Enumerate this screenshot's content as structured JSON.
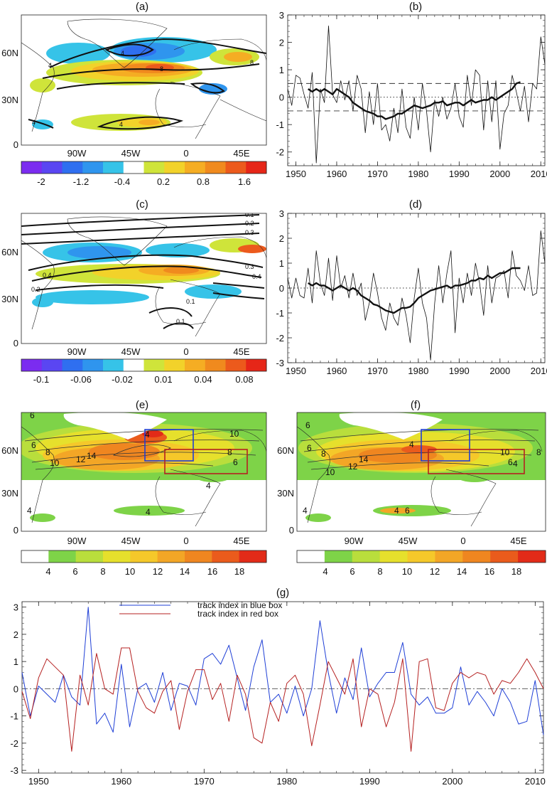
{
  "panels": {
    "a": "(a)",
    "b": "(b)",
    "c": "(c)",
    "d": "(d)",
    "e": "(e)",
    "f": "(f)",
    "g": "(g)"
  },
  "map": {
    "lat_ticks": [
      "0",
      "30N",
      "60N"
    ],
    "lon_ticks": [
      "90W",
      "45W",
      "0",
      "45E"
    ]
  },
  "colorbars": {
    "a": {
      "labels": [
        "-2",
        "-1.2",
        "-0.4",
        "0.2",
        "0.8",
        "1.6"
      ],
      "colors": [
        "#7b2cf0",
        "#5a46f2",
        "#2f6ff0",
        "#2f95ee",
        "#36c3e8",
        "#ffffff",
        "#cfe43a",
        "#f2d22a",
        "#f5ad23",
        "#f08a1e",
        "#ec5a1c",
        "#e62618"
      ]
    },
    "c": {
      "labels": [
        "-0.1",
        "-0.06",
        "-0.02",
        "0.01",
        "0.04",
        "0.08"
      ],
      "colors": [
        "#7b2cf0",
        "#5a46f2",
        "#2f6ff0",
        "#2f95ee",
        "#36c3e8",
        "#ffffff",
        "#cfe43a",
        "#f2d22a",
        "#f5ad23",
        "#f08a1e",
        "#ec5a1c",
        "#e62618"
      ]
    },
    "e": {
      "labels": [
        "4",
        "6",
        "8",
        "10",
        "12",
        "14",
        "16",
        "18"
      ],
      "colors": [
        "#ffffff",
        "#7ed348",
        "#b9de3c",
        "#e6e02c",
        "#f5c82a",
        "#f3a626",
        "#ef8620",
        "#ea5b1c",
        "#e22b18"
      ]
    }
  },
  "contour_labels": {
    "a": [
      "4",
      "8",
      "8",
      "4",
      "4",
      "4"
    ],
    "c": [
      "0.1",
      "0.2",
      "0.3",
      "0.4",
      "0.2",
      "0.3",
      "0.4",
      "0.1",
      "0.1"
    ],
    "e": [
      "6",
      "6",
      "8",
      "10",
      "12",
      "14",
      "4",
      "10",
      "8",
      "6",
      "4",
      "4",
      "4"
    ],
    "f": [
      "6",
      "6",
      "8",
      "10",
      "12",
      "14",
      "4",
      "10",
      "8",
      "6",
      "4",
      "4",
      "4",
      "6"
    ]
  },
  "chart_data": [
    {
      "id": "b",
      "type": "line",
      "x": [
        1948,
        1949,
        1950,
        1951,
        1952,
        1953,
        1954,
        1955,
        1956,
        1957,
        1958,
        1959,
        1960,
        1961,
        1962,
        1963,
        1964,
        1965,
        1966,
        1967,
        1968,
        1969,
        1970,
        1971,
        1972,
        1973,
        1974,
        1975,
        1976,
        1977,
        1978,
        1979,
        1980,
        1981,
        1982,
        1983,
        1984,
        1985,
        1986,
        1987,
        1988,
        1989,
        1990,
        1991,
        1992,
        1993,
        1994,
        1995,
        1996,
        1997,
        1998,
        1999,
        2000,
        2001,
        2002,
        2003,
        2004,
        2005,
        2006,
        2007,
        2008,
        2009,
        2010,
        2011
      ],
      "series": [
        {
          "values": [
            0.3,
            -0.3,
            0.8,
            0.7,
            0.1,
            -0.4,
            0.9,
            -2.4,
            0.3,
            -0.2,
            2.6,
            0.1,
            -0.2,
            0.6,
            -0.1,
            0.6,
            -0.5,
            0.8,
            0.3,
            -1.3,
            0.2,
            -1.0,
            0.5,
            -1.2,
            -1.0,
            -1.6,
            -0.4,
            -1.3,
            0.3,
            -1.1,
            -1.5,
            0.0,
            -1.2,
            0.5,
            -0.5,
            -2.0,
            -0.1,
            -0.7,
            0.0,
            -0.8,
            -0.4,
            0.5,
            -0.7,
            -1.1,
            0.8,
            -0.3,
            1.0,
            0.8,
            -1.2,
            0.6,
            -0.9,
            0.6,
            -1.9,
            -0.6,
            -0.3,
            0.8,
            0.2,
            -0.5,
            0.4,
            -0.9,
            0.5,
            0.3,
            2.2,
            1.2
          ]
        },
        {
          "values": [
            null,
            null,
            null,
            null,
            null,
            0.3,
            0.2,
            0.3,
            0.2,
            0.3,
            0.2,
            0.1,
            0.3,
            0.2,
            0.1,
            0.0,
            -0.2,
            -0.3,
            -0.4,
            -0.5,
            -0.55,
            -0.6,
            -0.7,
            -0.7,
            -0.8,
            -0.75,
            -0.7,
            -0.6,
            -0.6,
            -0.5,
            -0.4,
            -0.3,
            -0.35,
            -0.4,
            -0.35,
            -0.3,
            -0.2,
            -0.2,
            -0.15,
            -0.3,
            -0.25,
            -0.2,
            -0.2,
            -0.3,
            -0.2,
            -0.1,
            -0.2,
            -0.15,
            -0.1,
            -0.1,
            0.0,
            -0.1,
            0.0,
            0.1,
            0.2,
            0.3,
            0.5,
            0.55,
            null,
            null,
            null,
            null,
            null,
            null
          ]
        }
      ],
      "xticks": [
        "1950",
        "1960",
        "1970",
        "1980",
        "1990",
        "2000",
        "2010"
      ],
      "yticks": [
        "-2",
        "-1",
        "0",
        "1",
        "2",
        "3"
      ],
      "ylim": [
        -2.5,
        3
      ],
      "xlim": [
        1948,
        2011
      ],
      "hlines": {
        "dashed": [
          0.5,
          -0.5
        ],
        "dotted": [
          0
        ]
      }
    },
    {
      "id": "d",
      "type": "line",
      "x": [
        1948,
        1949,
        1950,
        1951,
        1952,
        1953,
        1954,
        1955,
        1956,
        1957,
        1958,
        1959,
        1960,
        1961,
        1962,
        1963,
        1964,
        1965,
        1966,
        1967,
        1968,
        1969,
        1970,
        1971,
        1972,
        1973,
        1974,
        1975,
        1976,
        1977,
        1978,
        1979,
        1980,
        1981,
        1982,
        1983,
        1984,
        1985,
        1986,
        1987,
        1988,
        1989,
        1990,
        1991,
        1992,
        1993,
        1994,
        1995,
        1996,
        1997,
        1998,
        1999,
        2000,
        2001,
        2002,
        2003,
        2004,
        2005,
        2006,
        2007,
        2008,
        2009,
        2010,
        2011
      ],
      "series": [
        {
          "values": [
            0.4,
            -0.4,
            0.4,
            -0.3,
            -0.4,
            0.8,
            -0.6,
            1.5,
            0.2,
            -0.3,
            1.2,
            -0.5,
            1.3,
            0.0,
            0.5,
            -0.4,
            0.6,
            -0.3,
            0.2,
            -1.3,
            -0.6,
            0.6,
            -0.2,
            -1.2,
            -1.7,
            -0.6,
            -1.2,
            -1.5,
            -0.4,
            -1.1,
            -2.2,
            -0.4,
            0.8,
            -0.6,
            -1.2,
            -2.9,
            -0.6,
            0.9,
            -0.6,
            0.6,
            1.5,
            -1.8,
            0.4,
            -0.6,
            0.6,
            -0.3,
            1.0,
            0.2,
            -1.1,
            0.9,
            -0.6,
            0.4,
            0.5,
            0.7,
            -0.4,
            1.5,
            0.5,
            0.3,
            -0.1,
            0.9,
            -0.3,
            -0.2,
            2.3,
            1.0
          ]
        },
        {
          "values": [
            null,
            null,
            null,
            null,
            null,
            0.2,
            0.1,
            0.2,
            0.1,
            0.1,
            0.0,
            -0.1,
            0.0,
            0.1,
            0.0,
            -0.1,
            0.0,
            -0.1,
            -0.3,
            -0.4,
            -0.5,
            -0.65,
            -0.7,
            -0.8,
            -0.9,
            -0.95,
            -1.0,
            -0.9,
            -0.8,
            -0.8,
            -0.75,
            -0.6,
            -0.4,
            -0.3,
            -0.2,
            -0.1,
            -0.05,
            0.0,
            0.05,
            0.1,
            0.0,
            0.1,
            0.1,
            0.15,
            0.2,
            0.3,
            0.3,
            0.4,
            0.35,
            0.5,
            0.4,
            0.5,
            0.6,
            0.6,
            0.7,
            0.8,
            0.8,
            0.8,
            null,
            null,
            null,
            null,
            null,
            null
          ]
        }
      ],
      "xticks": [
        "1950",
        "1960",
        "1970",
        "1980",
        "1990",
        "2000",
        "2010"
      ],
      "yticks": [
        "-3",
        "-2",
        "-1",
        "0",
        "1",
        "2",
        "3"
      ],
      "ylim": [
        -3,
        3
      ],
      "xlim": [
        1948,
        2011
      ],
      "hlines": {
        "dotted": [
          0
        ]
      }
    },
    {
      "id": "g",
      "type": "line",
      "x": [
        1948,
        1949,
        1950,
        1951,
        1952,
        1953,
        1954,
        1955,
        1956,
        1957,
        1958,
        1959,
        1960,
        1961,
        1962,
        1963,
        1964,
        1965,
        1966,
        1967,
        1968,
        1969,
        1970,
        1971,
        1972,
        1973,
        1974,
        1975,
        1976,
        1977,
        1978,
        1979,
        1980,
        1981,
        1982,
        1983,
        1984,
        1985,
        1986,
        1987,
        1988,
        1989,
        1990,
        1991,
        1992,
        1993,
        1994,
        1995,
        1996,
        1997,
        1998,
        1999,
        2000,
        2001,
        2002,
        2003,
        2004,
        2005,
        2006,
        2007,
        2008,
        2009,
        2010,
        2011
      ],
      "series": [
        {
          "name": "track index in blue box",
          "color": "#1f3fd6",
          "values": [
            0.6,
            -1.0,
            0.1,
            -0.2,
            -0.5,
            0.5,
            -0.3,
            -0.6,
            3.0,
            -1.3,
            -0.9,
            -1.6,
            0.9,
            -1.4,
            0.0,
            0.2,
            -0.5,
            0.6,
            -0.8,
            0.2,
            0.1,
            -0.6,
            1.1,
            1.3,
            0.9,
            1.6,
            0.4,
            -0.8,
            0.8,
            1.8,
            -0.5,
            -0.2,
            -0.9,
            0.1,
            -1.0,
            0.0,
            2.5,
            0.6,
            -0.9,
            0.4,
            -0.4,
            1.5,
            -0.3,
            0.2,
            0.6,
            0.6,
            1.7,
            -0.2,
            -0.6,
            -0.3,
            -0.9,
            -0.9,
            -0.7,
            0.8,
            -0.6,
            -0.1,
            -0.5,
            -1.0,
            0.0,
            -0.5,
            -1.3,
            -1.2,
            0.3,
            -1.7
          ]
        },
        {
          "name": "track index in red box",
          "color": "#b52020",
          "values": [
            -0.1,
            -1.1,
            0.4,
            1.1,
            0.8,
            0.5,
            -2.3,
            0.5,
            -0.6,
            1.3,
            0.0,
            -0.2,
            1.5,
            1.5,
            -0.1,
            -0.7,
            -0.9,
            -0.1,
            0.3,
            -1.5,
            -0.1,
            0.7,
            0.7,
            -0.4,
            0.2,
            -1.2,
            0.5,
            -0.2,
            -1.8,
            -2.0,
            -0.5,
            -1.2,
            0.2,
            0.5,
            -0.2,
            -2.1,
            -0.6,
            1.0,
            0.4,
            -0.2,
            1.1,
            -1.4,
            0.0,
            -0.2,
            -1.4,
            -0.5,
            1.1,
            -2.3,
            1.0,
            1.1,
            -0.7,
            -0.8,
            0.2,
            0.6,
            0.4,
            0.6,
            0.5,
            -0.2,
            0.3,
            0.2,
            0.6,
            1.1,
            0.6,
            0.0
          ]
        }
      ],
      "xticks": [
        "1950",
        "1960",
        "1970",
        "1980",
        "1990",
        "2000",
        "2010"
      ],
      "yticks": [
        "-3",
        "-2",
        "-1",
        "0",
        "1",
        "2",
        "3"
      ],
      "ylim": [
        -3.1,
        3.2
      ],
      "xlim": [
        1948,
        2011
      ],
      "hlines": {
        "dashdot": [
          0
        ]
      }
    }
  ]
}
